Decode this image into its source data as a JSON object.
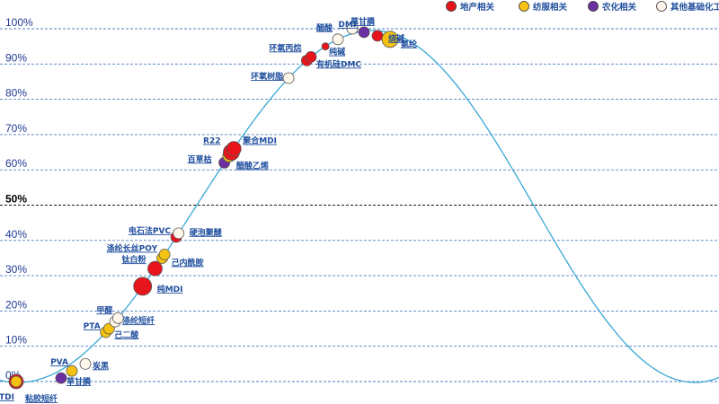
{
  "chart_data": {
    "type": "scatter",
    "title": "",
    "xlabel": "",
    "ylabel": "",
    "ylim": [
      0,
      100
    ],
    "y_ticks": [
      "0%",
      "10%",
      "20%",
      "30%",
      "40%",
      "50%",
      "60%",
      "70%",
      "80%",
      "90%",
      "100%"
    ],
    "legend": [
      {
        "name": "地产相关",
        "color": "#e8141c"
      },
      {
        "name": "纺服相关",
        "color": "#f5c211"
      },
      {
        "name": "农化相关",
        "color": "#6a2fa0"
      },
      {
        "name": "其他基础化工品",
        "color": "#fff7ea"
      }
    ],
    "series": [
      {
        "name": "TDI",
        "category": "地产相关",
        "value": 0
      },
      {
        "name": "粘胶短纤",
        "category": "纺服相关",
        "value": 0
      },
      {
        "name": "草甘膦",
        "category": "农化相关",
        "value": 1
      },
      {
        "name": "PVA",
        "category": "纺服相关",
        "value": 3
      },
      {
        "name": "炭黑",
        "category": "其他基础化工品",
        "value": 5
      },
      {
        "name": "PTA",
        "category": "纺服相关",
        "value": 14
      },
      {
        "name": "己二酸",
        "category": "纺服相关",
        "value": 15
      },
      {
        "name": "涤纶短纤",
        "category": "其他基础化工品",
        "value": 17
      },
      {
        "name": "甲醇",
        "category": "其他基础化工品",
        "value": 18
      },
      {
        "name": "纯MDI",
        "category": "地产相关",
        "value": 27
      },
      {
        "name": "钛白粉",
        "category": "地产相关",
        "value": 32
      },
      {
        "name": "己内酰胺",
        "category": "纺服相关",
        "value": 35
      },
      {
        "name": "涤纶长丝POY",
        "category": "纺服相关",
        "value": 36
      },
      {
        "name": "电石法PVC",
        "category": "地产相关",
        "value": 41
      },
      {
        "name": "硬泡聚醚",
        "category": "其他基础化工品",
        "value": 42
      },
      {
        "name": "百草枯",
        "category": "农化相关",
        "value": 62
      },
      {
        "name": "醋酸乙烯",
        "category": "纺服相关",
        "value": 64
      },
      {
        "name": "R22",
        "category": "地产相关",
        "value": 65
      },
      {
        "name": "聚合MDI",
        "category": "地产相关",
        "value": 66
      },
      {
        "name": "环氧树脂",
        "category": "其他基础化工品",
        "value": 86
      },
      {
        "name": "环氧丙烷",
        "category": "地产相关",
        "value": 91
      },
      {
        "name": "有机硅DMC",
        "category": "地产相关",
        "value": 92
      },
      {
        "name": "纯碱",
        "category": "地产相关",
        "value": 95
      },
      {
        "name": "醋酸",
        "category": "其他基础化工品",
        "value": 97
      },
      {
        "name": "DMF",
        "category": "农化相关",
        "value": 99
      },
      {
        "name": "草甘膦",
        "category": "其他基础化工品",
        "value": 100
      },
      {
        "name": "烧碱",
        "category": "地产相关",
        "value": 98
      },
      {
        "name": "氨纶",
        "category": "纺服相关",
        "value": 97
      }
    ]
  }
}
